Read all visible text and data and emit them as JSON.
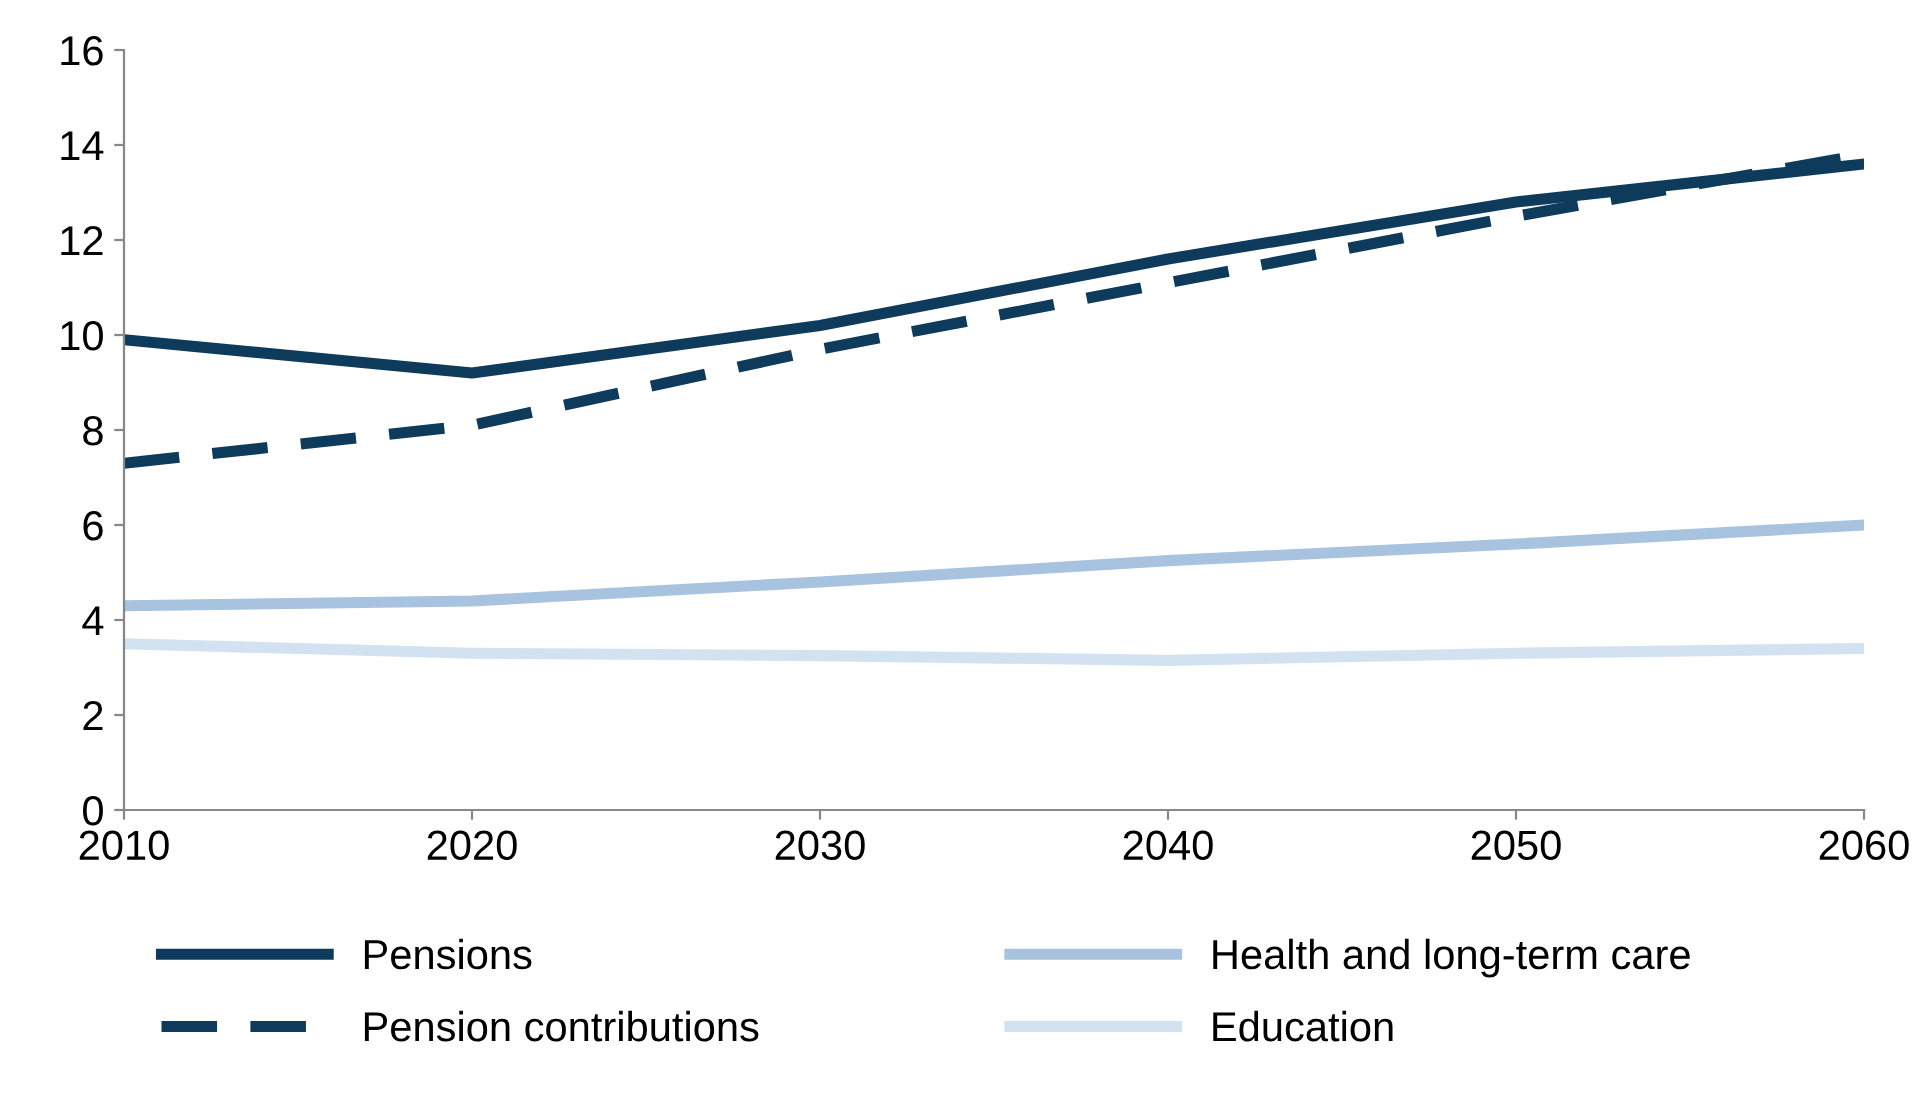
{
  "chart_data": {
    "type": "line",
    "x": [
      2010,
      2020,
      2030,
      2040,
      2050,
      2060
    ],
    "series": [
      {
        "name": "Pensions",
        "color": "#0e3a5c",
        "line_style": "solid",
        "values": [
          9.9,
          9.2,
          10.2,
          11.6,
          12.8,
          13.6
        ]
      },
      {
        "name": "Pension contributions",
        "color": "#0e3a5c",
        "line_style": "dashed",
        "values": [
          7.3,
          8.1,
          9.7,
          11.1,
          12.5,
          13.8
        ]
      },
      {
        "name": "Health and long-term care",
        "color": "#a8c3df",
        "line_style": "solid",
        "values": [
          4.3,
          4.4,
          4.8,
          5.25,
          5.6,
          6.0
        ]
      },
      {
        "name": "Education",
        "color": "#d3e2f0",
        "line_style": "solid",
        "values": [
          3.5,
          3.3,
          3.25,
          3.15,
          3.3,
          3.4
        ]
      }
    ],
    "xlim": [
      2010,
      2060
    ],
    "xticks": [
      2010,
      2020,
      2030,
      2040,
      2050,
      2060
    ],
    "ylim": [
      0,
      16
    ],
    "yticks": [
      0,
      2,
      4,
      6,
      8,
      10,
      12,
      14,
      16
    ],
    "grid": false,
    "legend": "bottom",
    "marker": "none"
  }
}
